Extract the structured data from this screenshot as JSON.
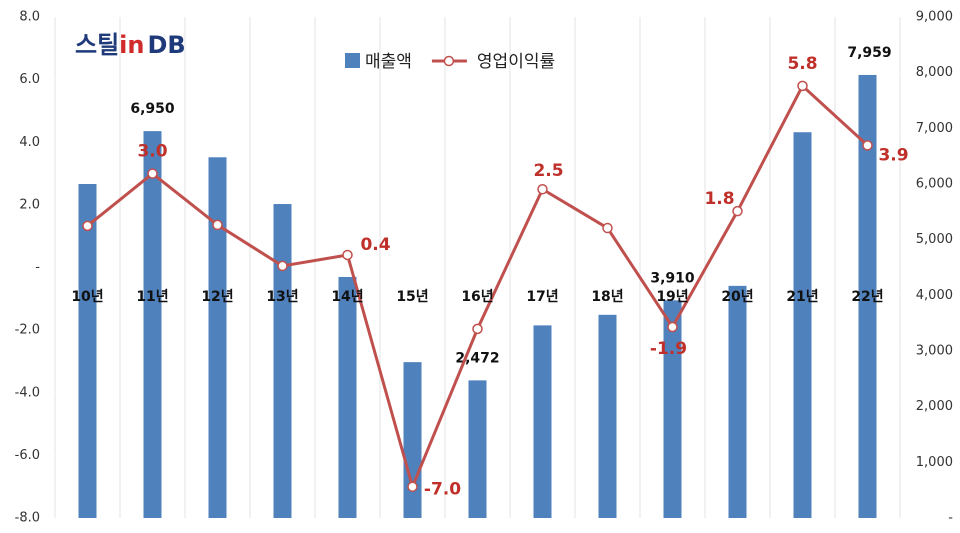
{
  "chart_data": {
    "type": "bar-line",
    "logo": [
      "스틸",
      "in",
      "DB"
    ],
    "categories": [
      "10년",
      "11년",
      "12년",
      "13년",
      "14년",
      "15년",
      "16년",
      "17년",
      "18년",
      "19년",
      "20년",
      "21년",
      "22년"
    ],
    "series": [
      {
        "name": "매출액",
        "type": "bar",
        "axis": "y2",
        "color": "#4f81bd",
        "values": [
          6000,
          6950,
          6480,
          5640,
          4330,
          2800,
          2472,
          3460,
          3650,
          3910,
          4170,
          6930,
          7959
        ],
        "value_labels": [
          null,
          "6,950",
          null,
          null,
          null,
          null,
          "2,472",
          null,
          null,
          "3,910",
          null,
          null,
          "7,959"
        ]
      },
      {
        "name": "영업이익률",
        "type": "line",
        "axis": "y",
        "color": "#c0504d",
        "values": [
          1.33,
          3.0,
          1.36,
          0.05,
          0.4,
          -7.0,
          -1.96,
          2.5,
          1.26,
          -1.9,
          1.8,
          5.8,
          3.9
        ],
        "value_labels": [
          null,
          "3.0",
          null,
          null,
          "0.4",
          "-7.0",
          null,
          "2.5",
          null,
          "-1.9",
          "1.8",
          "5.8",
          "3.9"
        ]
      }
    ],
    "ylim": [
      -8,
      8
    ],
    "yticks": [
      {
        "value": -8,
        "label": "-8.0"
      },
      {
        "value": -6,
        "label": "-6.0"
      },
      {
        "value": -4,
        "label": "-4.0"
      },
      {
        "value": -2,
        "label": "-2.0"
      },
      {
        "value": 0,
        "label": "-"
      },
      {
        "value": 2,
        "label": "2.0"
      },
      {
        "value": 4,
        "label": "4.0"
      },
      {
        "value": 6,
        "label": "6.0"
      },
      {
        "value": 8,
        "label": "8.0"
      }
    ],
    "y2lim": [
      0,
      9000
    ],
    "y2ticks": [
      {
        "value": 0,
        "label": "-"
      },
      {
        "value": 1000,
        "label": "1,000"
      },
      {
        "value": 2000,
        "label": "2,000"
      },
      {
        "value": 3000,
        "label": "3,000"
      },
      {
        "value": 4000,
        "label": "4,000"
      },
      {
        "value": 5000,
        "label": "5,000"
      },
      {
        "value": 6000,
        "label": "6,000"
      },
      {
        "value": 7000,
        "label": "7,000"
      },
      {
        "value": 8000,
        "label": "8,000"
      },
      {
        "value": 9000,
        "label": "9,000"
      }
    ],
    "legend": "top"
  }
}
